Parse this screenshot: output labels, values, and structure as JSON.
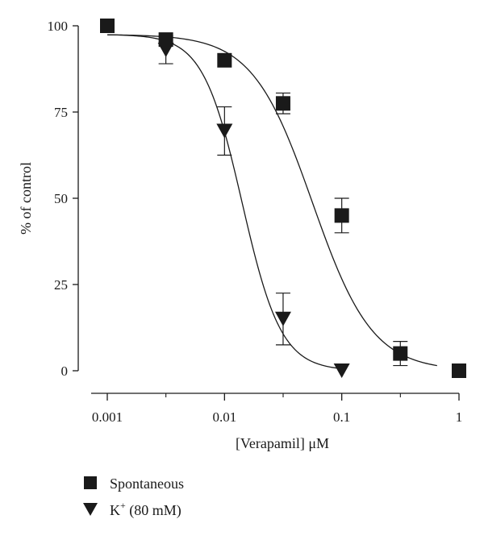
{
  "chart_data": {
    "type": "scatter",
    "xlabel": "[Verapamil] μM",
    "ylabel": "% of control",
    "xscale": "log",
    "xlim": [
      0.001,
      1
    ],
    "ylim": [
      0,
      100
    ],
    "x_ticks": [
      0.001,
      0.01,
      0.1,
      1
    ],
    "x_tick_labels": [
      "0.001",
      "0.01",
      "0.1",
      "1"
    ],
    "y_ticks": [
      0,
      25,
      50,
      75,
      100
    ],
    "y_tick_labels": [
      "0",
      "25",
      "50",
      "75",
      "100"
    ],
    "grid": false,
    "legend_position": "bottom-left",
    "series": [
      {
        "name": "Spontaneous",
        "marker": "square",
        "color": "#1a1a1a",
        "x": [
          0.001,
          0.00316,
          0.01,
          0.0316,
          0.1,
          0.316,
          1
        ],
        "y": [
          100,
          96,
          90,
          77.5,
          45,
          5,
          0
        ],
        "err": [
          0,
          0,
          0,
          3,
          5,
          3.5,
          0
        ],
        "fit": {
          "top": 97.5,
          "bottom": 0,
          "logIC50": -1.25,
          "hill": 1.7,
          "x_range": [
            0.001,
            0.65
          ]
        }
      },
      {
        "name": "K+ (80 mM)",
        "marker": "triangle-down",
        "color": "#1a1a1a",
        "x": [
          0.00316,
          0.01,
          0.0316,
          0.1
        ],
        "y": [
          93,
          69.5,
          15,
          0
        ],
        "err": [
          4,
          7,
          7.5,
          0
        ],
        "fit": {
          "top": 97.5,
          "bottom": 0,
          "logIC50": -1.85,
          "hill": 2.6,
          "x_range": [
            0.001,
            0.1
          ]
        }
      }
    ]
  },
  "legend": {
    "spontaneous_label": "Spontaneous",
    "k_label_main": "K",
    "k_label_sup": "+",
    "k_label_rest": " (80 mM)"
  }
}
